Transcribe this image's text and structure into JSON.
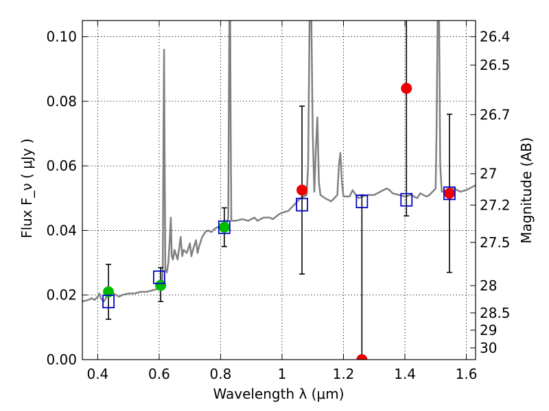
{
  "chart_data": {
    "type": "scatter",
    "xlabel": "Wavelength  λ (μm)",
    "ylabel": "Flux  F_ν  ( μJy )",
    "ylabel_right": "Magnitude (AB)",
    "xlim": [
      0.35,
      1.63
    ],
    "ylim": [
      0.0,
      0.105
    ],
    "grid": true,
    "x_ticks": [
      {
        "value": 0.4,
        "label": "0.4"
      },
      {
        "value": 0.6,
        "label": "0.6"
      },
      {
        "value": 0.8,
        "label": "0.8"
      },
      {
        "value": 1.0,
        "label": "1"
      },
      {
        "value": 1.2,
        "label": "1.2"
      },
      {
        "value": 1.4,
        "label": "1.4"
      },
      {
        "value": 1.6,
        "label": "1.6"
      }
    ],
    "y_ticks": [
      {
        "value": 0.0,
        "label": "0.00"
      },
      {
        "value": 0.02,
        "label": "0.02"
      },
      {
        "value": 0.04,
        "label": "0.04"
      },
      {
        "value": 0.06,
        "label": "0.06"
      },
      {
        "value": 0.08,
        "label": "0.08"
      },
      {
        "value": 0.1,
        "label": "0.10"
      }
    ],
    "y_ticks_right": [
      {
        "mag": 26.4,
        "label": "26.4"
      },
      {
        "mag": 26.5,
        "label": "26.5"
      },
      {
        "mag": 26.7,
        "label": "26.7"
      },
      {
        "mag": 27.0,
        "label": "27"
      },
      {
        "mag": 27.2,
        "label": "27.2"
      },
      {
        "mag": 27.5,
        "label": "27.5"
      },
      {
        "mag": 28.0,
        "label": "28"
      },
      {
        "mag": 28.5,
        "label": "28.5"
      },
      {
        "mag": 29.0,
        "label": "29"
      },
      {
        "mag": 30.0,
        "label": "30"
      }
    ],
    "series": [
      {
        "kind": "line",
        "color": "#808080",
        "points": [
          [
            0.35,
            0.018
          ],
          [
            0.37,
            0.0185
          ],
          [
            0.38,
            0.019
          ],
          [
            0.39,
            0.0185
          ],
          [
            0.4,
            0.0195
          ],
          [
            0.405,
            0.0205
          ],
          [
            0.41,
            0.019
          ],
          [
            0.42,
            0.018
          ],
          [
            0.43,
            0.0195
          ],
          [
            0.44,
            0.02
          ],
          [
            0.45,
            0.0205
          ],
          [
            0.46,
            0.02
          ],
          [
            0.47,
            0.0195
          ],
          [
            0.48,
            0.02
          ],
          [
            0.5,
            0.0205
          ],
          [
            0.52,
            0.0205
          ],
          [
            0.54,
            0.021
          ],
          [
            0.56,
            0.021
          ],
          [
            0.58,
            0.0215
          ],
          [
            0.6,
            0.022
          ],
          [
            0.605,
            0.0215
          ],
          [
            0.61,
            0.0235
          ],
          [
            0.612,
            0.03
          ],
          [
            0.614,
            0.07
          ],
          [
            0.616,
            0.096
          ],
          [
            0.618,
            0.06
          ],
          [
            0.62,
            0.028
          ],
          [
            0.625,
            0.027
          ],
          [
            0.63,
            0.03
          ],
          [
            0.635,
            0.038
          ],
          [
            0.638,
            0.044
          ],
          [
            0.641,
            0.032
          ],
          [
            0.645,
            0.031
          ],
          [
            0.65,
            0.034
          ],
          [
            0.66,
            0.031
          ],
          [
            0.67,
            0.038
          ],
          [
            0.675,
            0.032
          ],
          [
            0.68,
            0.034
          ],
          [
            0.69,
            0.033
          ],
          [
            0.7,
            0.036
          ],
          [
            0.705,
            0.032
          ],
          [
            0.71,
            0.034
          ],
          [
            0.72,
            0.037
          ],
          [
            0.725,
            0.033
          ],
          [
            0.73,
            0.035
          ],
          [
            0.74,
            0.038
          ],
          [
            0.75,
            0.0395
          ],
          [
            0.76,
            0.04
          ],
          [
            0.77,
            0.0395
          ],
          [
            0.78,
            0.0405
          ],
          [
            0.79,
            0.041
          ],
          [
            0.8,
            0.041
          ],
          [
            0.81,
            0.0415
          ],
          [
            0.82,
            0.042
          ],
          [
            0.825,
            0.044
          ],
          [
            0.827,
            0.08
          ],
          [
            0.829,
            0.11
          ],
          [
            0.831,
            0.11
          ],
          [
            0.833,
            0.07
          ],
          [
            0.835,
            0.043
          ],
          [
            0.85,
            0.043
          ],
          [
            0.87,
            0.0435
          ],
          [
            0.89,
            0.043
          ],
          [
            0.91,
            0.044
          ],
          [
            0.92,
            0.043
          ],
          [
            0.94,
            0.044
          ],
          [
            0.96,
            0.044
          ],
          [
            0.97,
            0.0435
          ],
          [
            0.99,
            0.045
          ],
          [
            1.0,
            0.0455
          ],
          [
            1.02,
            0.046
          ],
          [
            1.04,
            0.048
          ],
          [
            1.05,
            0.049
          ],
          [
            1.06,
            0.05
          ],
          [
            1.07,
            0.0505
          ],
          [
            1.08,
            0.051
          ],
          [
            1.085,
            0.06
          ],
          [
            1.09,
            0.11
          ],
          [
            1.095,
            0.11
          ],
          [
            1.1,
            0.07
          ],
          [
            1.105,
            0.052
          ],
          [
            1.11,
            0.065
          ],
          [
            1.115,
            0.075
          ],
          [
            1.12,
            0.055
          ],
          [
            1.125,
            0.051
          ],
          [
            1.14,
            0.05
          ],
          [
            1.16,
            0.049
          ],
          [
            1.17,
            0.05
          ],
          [
            1.18,
            0.051
          ],
          [
            1.185,
            0.06
          ],
          [
            1.19,
            0.064
          ],
          [
            1.195,
            0.055
          ],
          [
            1.2,
            0.0505
          ],
          [
            1.22,
            0.0505
          ],
          [
            1.23,
            0.0525
          ],
          [
            1.24,
            0.051
          ],
          [
            1.25,
            0.05
          ],
          [
            1.26,
            0.0505
          ],
          [
            1.28,
            0.051
          ],
          [
            1.3,
            0.051
          ],
          [
            1.32,
            0.052
          ],
          [
            1.34,
            0.053
          ],
          [
            1.35,
            0.0525
          ],
          [
            1.36,
            0.0515
          ],
          [
            1.38,
            0.051
          ],
          [
            1.4,
            0.0505
          ],
          [
            1.42,
            0.051
          ],
          [
            1.44,
            0.05
          ],
          [
            1.45,
            0.0515
          ],
          [
            1.46,
            0.051
          ],
          [
            1.47,
            0.0505
          ],
          [
            1.48,
            0.051
          ],
          [
            1.49,
            0.052
          ],
          [
            1.5,
            0.053
          ],
          [
            1.503,
            0.07
          ],
          [
            1.507,
            0.11
          ],
          [
            1.511,
            0.11
          ],
          [
            1.515,
            0.06
          ],
          [
            1.52,
            0.052
          ],
          [
            1.54,
            0.0525
          ],
          [
            1.56,
            0.053
          ],
          [
            1.58,
            0.052
          ],
          [
            1.6,
            0.0525
          ],
          [
            1.62,
            0.0535
          ],
          [
            1.63,
            0.054
          ]
        ]
      },
      {
        "kind": "model_points",
        "marker": "open-square",
        "color": "#0000cc",
        "points": [
          [
            0.435,
            0.018
          ],
          [
            0.6,
            0.0255
          ],
          [
            0.812,
            0.041
          ],
          [
            1.065,
            0.048
          ],
          [
            1.26,
            0.049
          ],
          [
            1.405,
            0.0495
          ],
          [
            1.545,
            0.0515
          ]
        ]
      },
      {
        "kind": "observed_points",
        "marker": "circle",
        "color": "#00bb00",
        "points": [
          {
            "x": 0.435,
            "y": 0.021,
            "yerr_low": 0.0125,
            "yerr_high": 0.0295
          },
          {
            "x": 0.605,
            "y": 0.023,
            "yerr_low": 0.018,
            "yerr_high": 0.0285
          },
          {
            "x": 0.812,
            "y": 0.041,
            "yerr_low": 0.035,
            "yerr_high": 0.047
          }
        ]
      },
      {
        "kind": "observed_points",
        "marker": "circle",
        "color": "#ee0000",
        "points": [
          {
            "x": 1.065,
            "y": 0.0525,
            "yerr_low": 0.0265,
            "yerr_high": 0.0785
          },
          {
            "x": 1.26,
            "y": 0.0,
            "yerr_low": 0.0,
            "yerr_high": 0.051
          },
          {
            "x": 1.405,
            "y": 0.084,
            "yerr_low": 0.0445,
            "yerr_high": 0.11
          },
          {
            "x": 1.545,
            "y": 0.0515,
            "yerr_low": 0.027,
            "yerr_high": 0.076
          }
        ]
      }
    ]
  }
}
